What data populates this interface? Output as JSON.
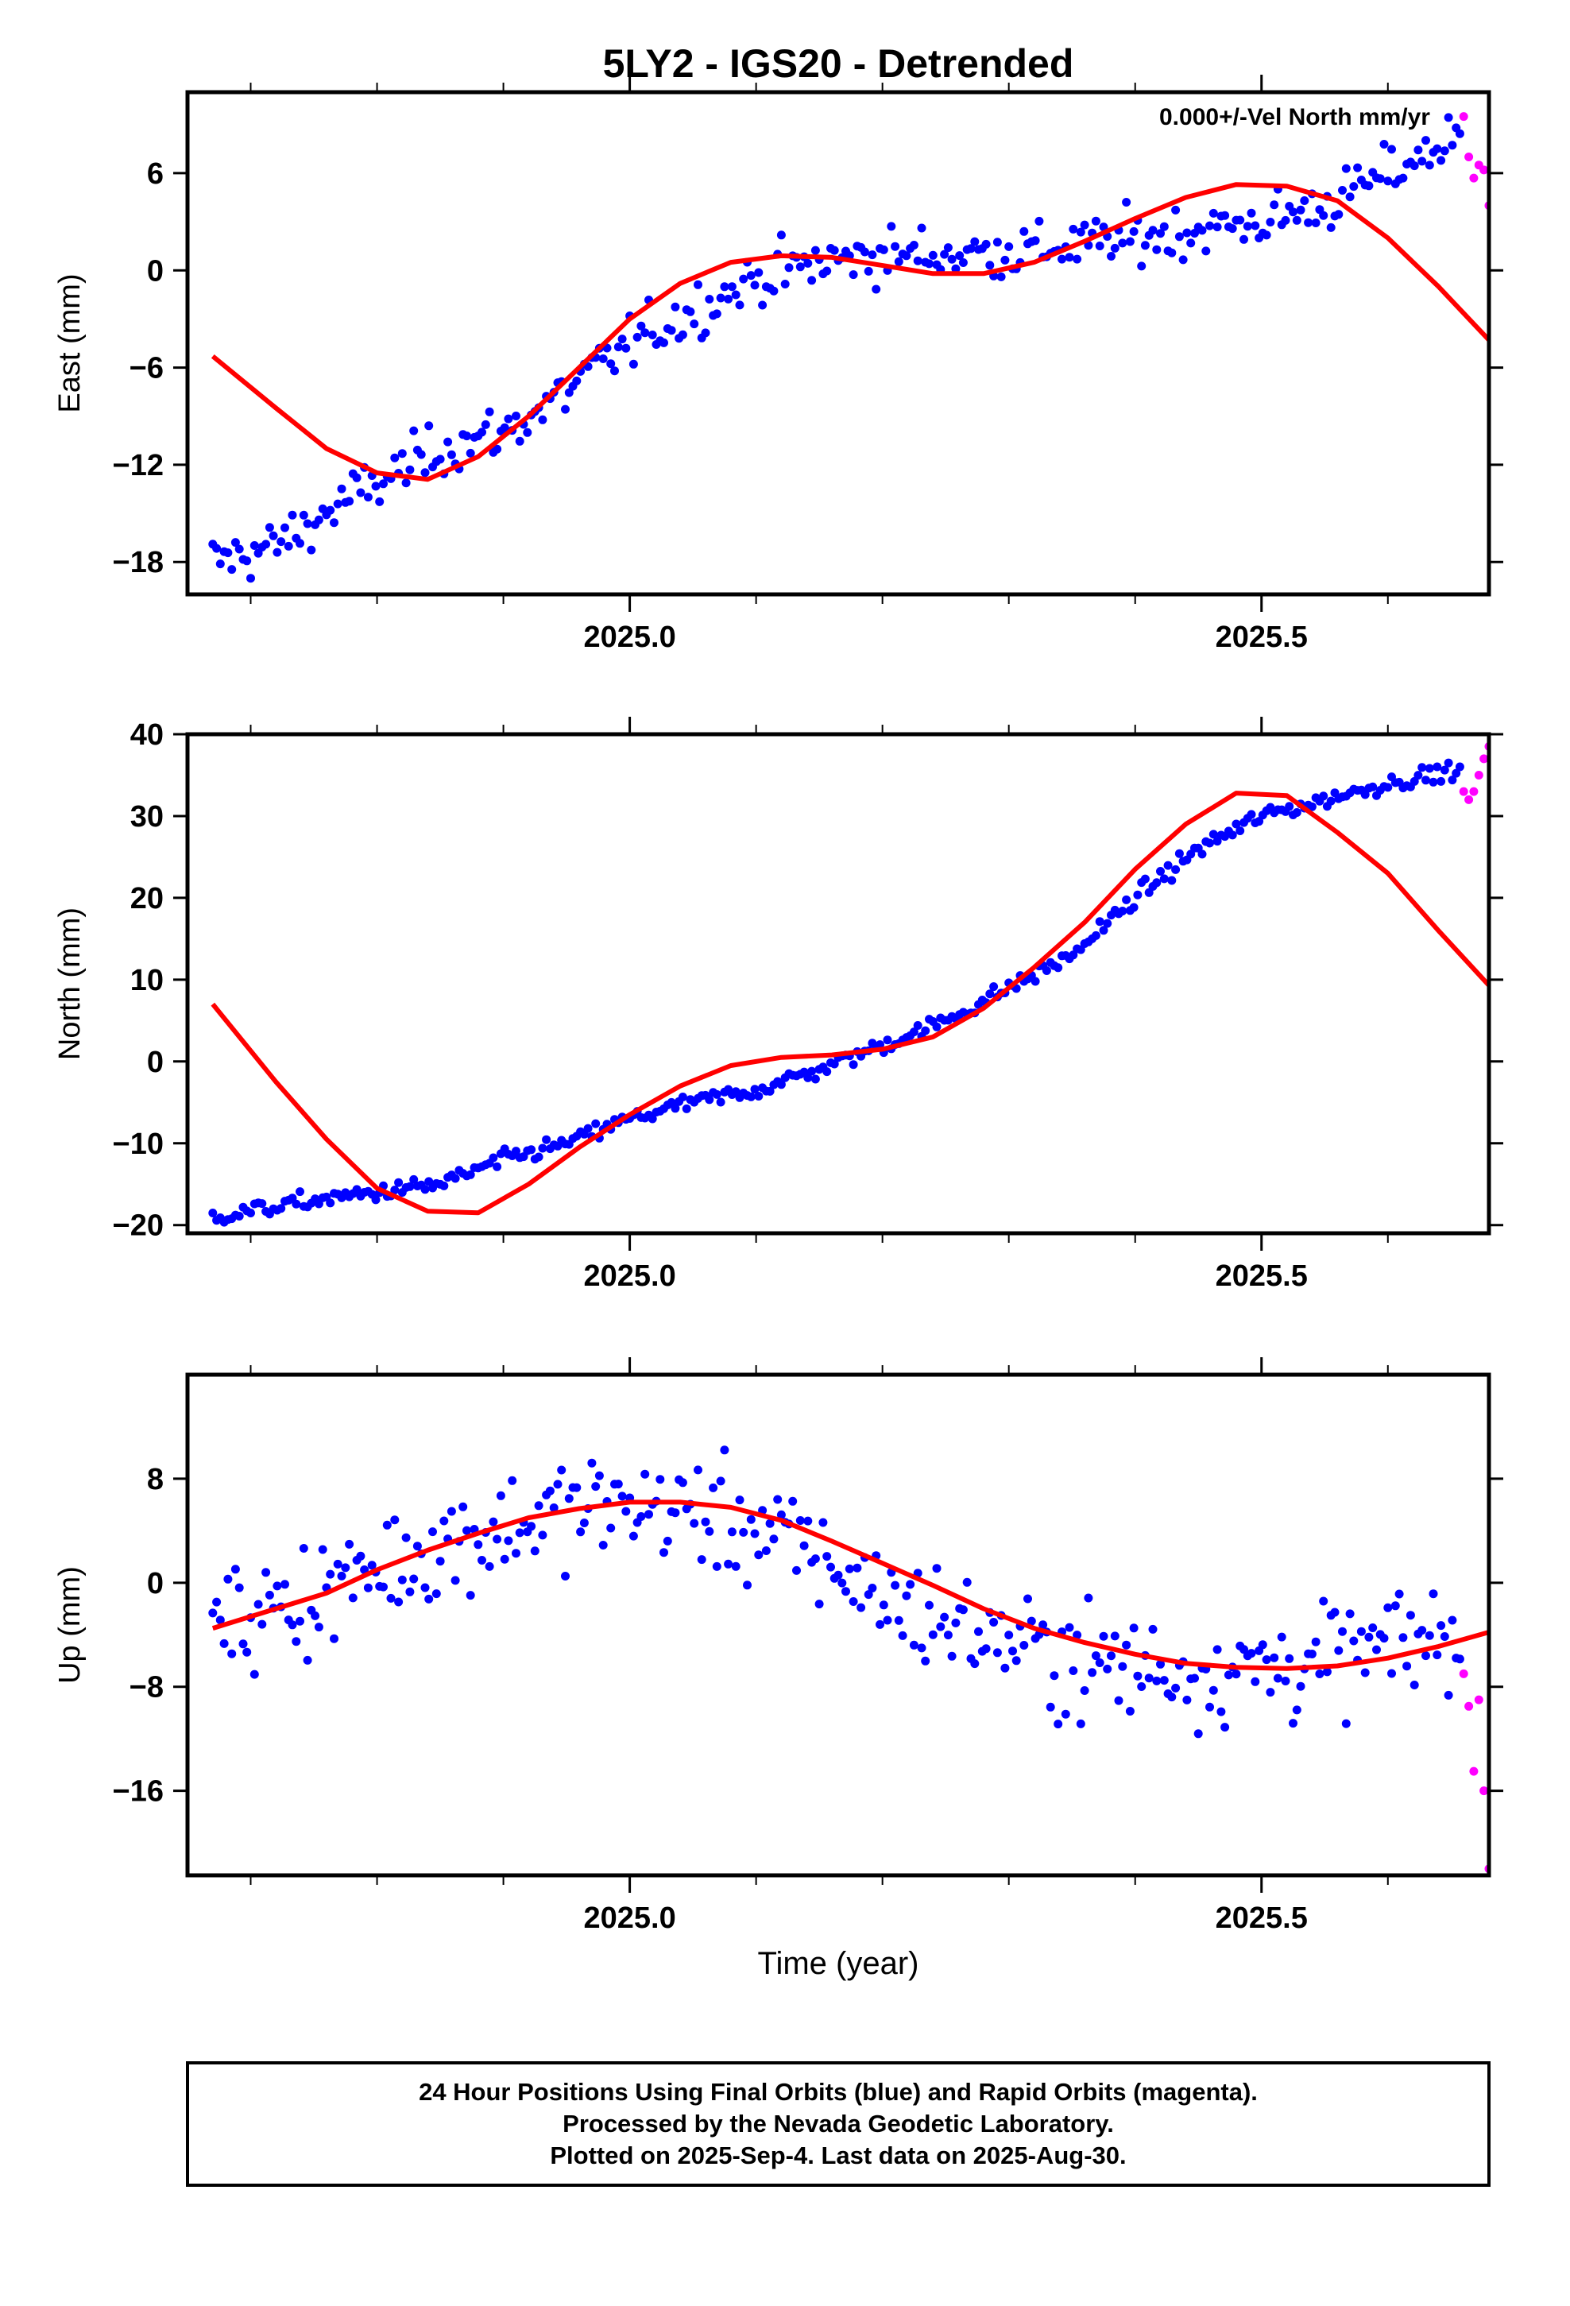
{
  "title": "5LY2 - IGS20 - Detrended",
  "annotation": "0.000+/-Vel North mm/yr",
  "xlabel": "Time (year)",
  "x_ticks": [
    "2025.0",
    "2025.5"
  ],
  "footer": [
    "24 Hour Positions Using Final Orbits (blue) and Rapid Orbits (magenta).",
    "Processed by the Nevada Geodetic Laboratory.",
    "Plotted on 2025-Sep-4. Last data on 2025-Aug-30."
  ],
  "colors": {
    "final": "#0000ff",
    "rapid": "#ff00ff",
    "model": "#ff0000",
    "frame": "#000000"
  },
  "chart_data": [
    {
      "type": "scatter",
      "ylabel": "East (mm)",
      "xlim": [
        2024.65,
        2025.68
      ],
      "ylim": [
        -20,
        11
      ],
      "y_ticks": [
        6,
        0,
        -6,
        -12,
        -18
      ],
      "y_tick_labels": [
        "6",
        "0",
        "−6",
        "−12",
        "−18"
      ],
      "final_trend": [
        [
          2024.67,
          -18.0
        ],
        [
          2024.72,
          -17.0
        ],
        [
          2024.78,
          -14.0
        ],
        [
          2024.85,
          -11.0
        ],
        [
          2024.9,
          -10.0
        ],
        [
          2024.95,
          -7.5
        ],
        [
          2025.0,
          -4.5
        ],
        [
          2025.05,
          -2.5
        ],
        [
          2025.1,
          -0.5
        ],
        [
          2025.15,
          0.5
        ],
        [
          2025.2,
          1.0
        ],
        [
          2025.25,
          1.0
        ],
        [
          2025.3,
          1.2
        ],
        [
          2025.35,
          1.5
        ],
        [
          2025.4,
          2.0
        ],
        [
          2025.45,
          2.5
        ],
        [
          2025.5,
          3.0
        ],
        [
          2025.55,
          4.0
        ],
        [
          2025.6,
          6.0
        ],
        [
          2025.65,
          8.0
        ]
      ],
      "final_noise": 1.4,
      "rapid_points": [
        [
          2025.66,
          9.5
        ],
        [
          2025.664,
          7.0
        ],
        [
          2025.668,
          5.7
        ],
        [
          2025.672,
          6.5
        ],
        [
          2025.676,
          6.2
        ],
        [
          2025.68,
          4.0
        ]
      ],
      "model_line": [
        [
          2024.67,
          -5.3
        ],
        [
          2024.72,
          -8.5
        ],
        [
          2024.76,
          -11.0
        ],
        [
          2024.8,
          -12.5
        ],
        [
          2024.84,
          -12.9
        ],
        [
          2024.88,
          -11.5
        ],
        [
          2024.92,
          -9.0
        ],
        [
          2024.96,
          -6.0
        ],
        [
          2025.0,
          -3.0
        ],
        [
          2025.04,
          -0.8
        ],
        [
          2025.08,
          0.5
        ],
        [
          2025.12,
          0.9
        ],
        [
          2025.16,
          0.8
        ],
        [
          2025.2,
          0.3
        ],
        [
          2025.24,
          -0.2
        ],
        [
          2025.28,
          -0.2
        ],
        [
          2025.32,
          0.5
        ],
        [
          2025.36,
          1.8
        ],
        [
          2025.4,
          3.2
        ],
        [
          2025.44,
          4.5
        ],
        [
          2025.48,
          5.3
        ],
        [
          2025.52,
          5.2
        ],
        [
          2025.56,
          4.3
        ],
        [
          2025.6,
          2.0
        ],
        [
          2025.64,
          -1.0
        ],
        [
          2025.68,
          -4.3
        ]
      ]
    },
    {
      "type": "scatter",
      "ylabel": "North (mm)",
      "xlim": [
        2024.65,
        2025.68
      ],
      "ylim": [
        -21,
        40
      ],
      "y_ticks": [
        40,
        30,
        20,
        10,
        0,
        -10,
        -20
      ],
      "y_tick_labels": [
        "40",
        "30",
        "20",
        "10",
        "0",
        "−10",
        "−20"
      ],
      "final_trend": [
        [
          2024.67,
          -19.0
        ],
        [
          2024.75,
          -17.0
        ],
        [
          2024.85,
          -15.0
        ],
        [
          2024.9,
          -12.0
        ],
        [
          2024.95,
          -10.0
        ],
        [
          2025.0,
          -7.0
        ],
        [
          2025.05,
          -5.0
        ],
        [
          2025.1,
          -3.5
        ],
        [
          2025.15,
          -1.0
        ],
        [
          2025.2,
          2.0
        ],
        [
          2025.25,
          5.0
        ],
        [
          2025.3,
          9.0
        ],
        [
          2025.35,
          13.0
        ],
        [
          2025.4,
          20.0
        ],
        [
          2025.45,
          26.0
        ],
        [
          2025.5,
          30.0
        ],
        [
          2025.55,
          32.0
        ],
        [
          2025.6,
          34.0
        ],
        [
          2025.65,
          35.5
        ]
      ],
      "final_noise": 0.9,
      "rapid_points": [
        [
          2025.66,
          33.0
        ],
        [
          2025.664,
          32.0
        ],
        [
          2025.668,
          33.0
        ],
        [
          2025.672,
          35.0
        ],
        [
          2025.676,
          37.0
        ],
        [
          2025.68,
          38.5
        ]
      ],
      "model_line": [
        [
          2024.67,
          7.0
        ],
        [
          2024.72,
          -2.5
        ],
        [
          2024.76,
          -9.5
        ],
        [
          2024.8,
          -15.5
        ],
        [
          2024.84,
          -18.3
        ],
        [
          2024.88,
          -18.5
        ],
        [
          2024.92,
          -15.0
        ],
        [
          2024.96,
          -10.5
        ],
        [
          2025.0,
          -6.5
        ],
        [
          2025.04,
          -3.0
        ],
        [
          2025.08,
          -0.5
        ],
        [
          2025.12,
          0.5
        ],
        [
          2025.16,
          0.8
        ],
        [
          2025.2,
          1.5
        ],
        [
          2025.24,
          3.0
        ],
        [
          2025.28,
          6.5
        ],
        [
          2025.32,
          11.5
        ],
        [
          2025.36,
          17.0
        ],
        [
          2025.4,
          23.5
        ],
        [
          2025.44,
          29.0
        ],
        [
          2025.48,
          32.8
        ],
        [
          2025.52,
          32.5
        ],
        [
          2025.56,
          28.0
        ],
        [
          2025.6,
          23.0
        ],
        [
          2025.64,
          16.0
        ],
        [
          2025.68,
          9.3
        ]
      ]
    },
    {
      "type": "scatter",
      "ylabel": "Up (mm)",
      "xlim": [
        2024.65,
        2025.68
      ],
      "ylim": [
        -22.5,
        16
      ],
      "y_ticks": [
        8,
        0,
        -8,
        -16
      ],
      "y_tick_labels": [
        "8",
        "0",
        "−8",
        "−16"
      ],
      "final_trend": [
        [
          2024.67,
          -3.5
        ],
        [
          2024.75,
          -1.0
        ],
        [
          2024.85,
          3.0
        ],
        [
          2024.95,
          5.5
        ],
        [
          2025.0,
          6.0
        ],
        [
          2025.05,
          5.5
        ],
        [
          2025.1,
          4.0
        ],
        [
          2025.15,
          2.0
        ],
        [
          2025.2,
          -1.0
        ],
        [
          2025.25,
          -3.0
        ],
        [
          2025.3,
          -4.5
        ],
        [
          2025.35,
          -6.0
        ],
        [
          2025.4,
          -6.5
        ],
        [
          2025.45,
          -6.8
        ],
        [
          2025.5,
          -6.5
        ],
        [
          2025.55,
          -6.0
        ],
        [
          2025.6,
          -5.0
        ],
        [
          2025.65,
          -4.0
        ]
      ],
      "final_noise": 3.6,
      "rapid_points": [
        [
          2025.66,
          -7.0
        ],
        [
          2025.664,
          -9.5
        ],
        [
          2025.668,
          -14.5
        ],
        [
          2025.672,
          -9.0
        ],
        [
          2025.676,
          -16.0
        ],
        [
          2025.68,
          -22.0
        ]
      ],
      "model_line": [
        [
          2024.67,
          -3.5
        ],
        [
          2024.72,
          -2.0
        ],
        [
          2024.76,
          -0.8
        ],
        [
          2024.8,
          1.0
        ],
        [
          2024.84,
          2.5
        ],
        [
          2024.88,
          3.8
        ],
        [
          2024.92,
          5.0
        ],
        [
          2024.96,
          5.7
        ],
        [
          2025.0,
          6.2
        ],
        [
          2025.04,
          6.2
        ],
        [
          2025.08,
          5.8
        ],
        [
          2025.12,
          4.8
        ],
        [
          2025.16,
          3.2
        ],
        [
          2025.2,
          1.5
        ],
        [
          2025.24,
          -0.2
        ],
        [
          2025.28,
          -2.0
        ],
        [
          2025.32,
          -3.5
        ],
        [
          2025.36,
          -4.6
        ],
        [
          2025.4,
          -5.5
        ],
        [
          2025.44,
          -6.2
        ],
        [
          2025.48,
          -6.5
        ],
        [
          2025.52,
          -6.6
        ],
        [
          2025.56,
          -6.4
        ],
        [
          2025.6,
          -5.8
        ],
        [
          2025.64,
          -4.9
        ],
        [
          2025.68,
          -3.8
        ]
      ]
    }
  ]
}
